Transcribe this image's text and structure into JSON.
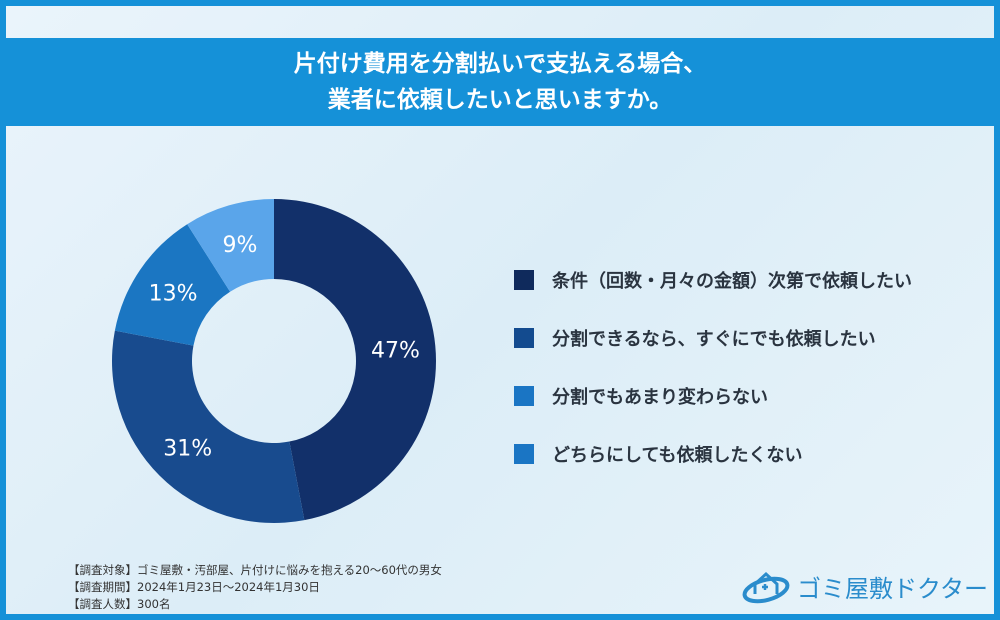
{
  "title_lines": [
    "片付け費用を分割払いで支払える場合、",
    "業者に依頼したいと思いますか。"
  ],
  "chart_data": {
    "type": "pie",
    "donut": true,
    "title": "片付け費用を分割払いで支払える場合、業者に依頼したいと思いますか。",
    "categories": [
      "条件（回数・月々の金額）次第で依頼したい",
      "分割できるなら、すぐにでも依頼したい",
      "分割でもあまり変わらない",
      "どちらにしても依頼したくない"
    ],
    "values": [
      47,
      31,
      13,
      9
    ],
    "labels": [
      "47%",
      "31%",
      "13%",
      "9%"
    ],
    "colors": [
      "#12306a",
      "#184b8e",
      "#1b76c2",
      "#5aa5ea"
    ],
    "legend_colors": [
      "#0f2a5c",
      "#134b8f",
      "#1a75c4",
      "#1a75c4"
    ],
    "legend": "right",
    "unit": "%"
  },
  "notes": [
    "【調査対象】ゴミ屋敷・汚部屋、片付けに悩みを抱える20～60代の男女",
    "【調査期間】2024年1月23日～2024年1月30日",
    "【調査人数】300名"
  ],
  "logo": {
    "text": "ゴミ屋敷ドクター",
    "icon": "house-cross-swoosh-icon"
  }
}
